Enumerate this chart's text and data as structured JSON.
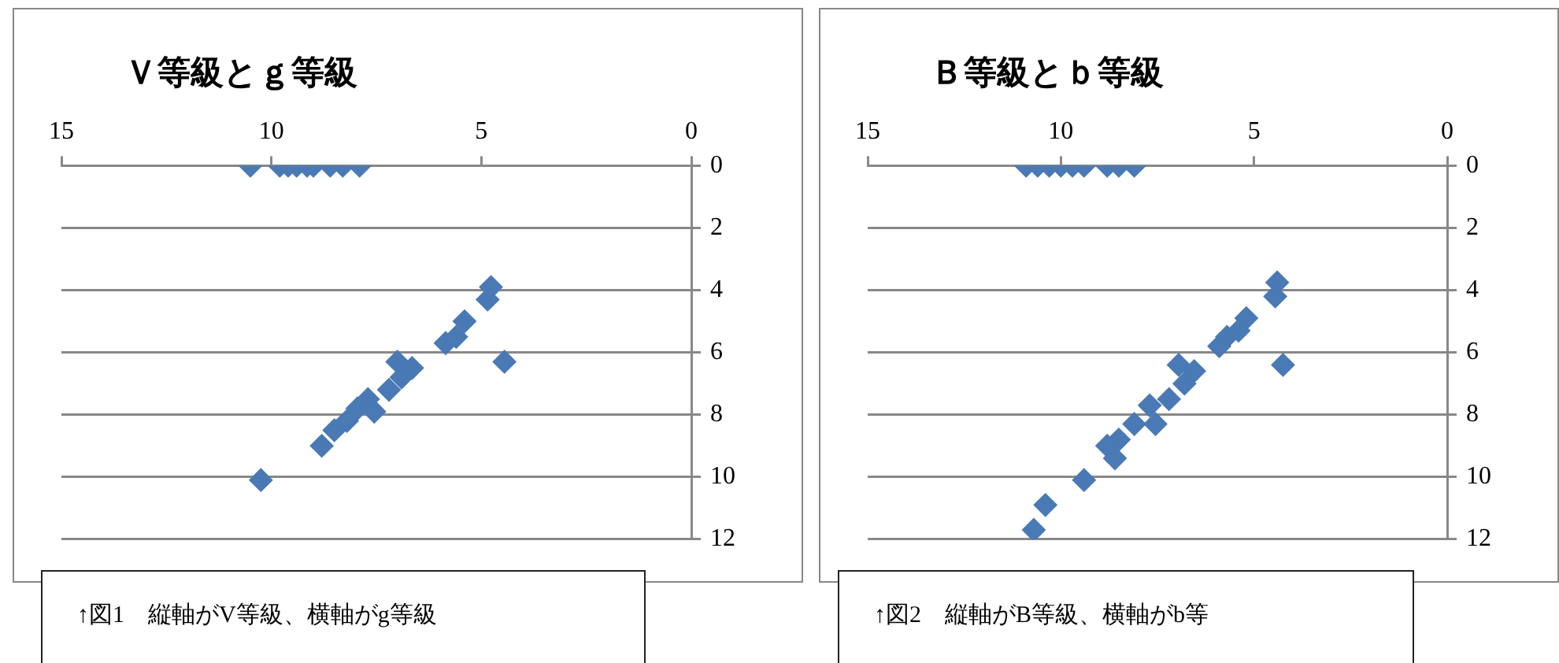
{
  "chart_data": [
    {
      "type": "scatter",
      "title": "Ｖ等級とｇ等級",
      "annotations": [
        "↑図1　縦軸がV等級、横軸がg等級"
      ],
      "xlim": [
        15,
        0
      ],
      "xticks": [
        15,
        10,
        5,
        0
      ],
      "ylim": [
        12,
        0
      ],
      "yticks": [
        0,
        2,
        4,
        6,
        8,
        10,
        12
      ],
      "grid": "y",
      "marker": "diamond",
      "legend": false,
      "series": [
        {
          "color": "#4a7ab5",
          "x": [
            10.5,
            9.8,
            9.6,
            9.4,
            9.15,
            9.0,
            8.6,
            8.3,
            7.9,
            4.77,
            4.85,
            5.4,
            5.6,
            5.85,
            4.45,
            7.0,
            6.65,
            6.9,
            7.2,
            7.7,
            7.55,
            7.95,
            8.2,
            8.5,
            8.8,
            10.25
          ],
          "values": [
            0,
            0,
            0,
            0,
            0,
            0,
            0,
            0,
            0,
            3.9,
            4.3,
            5.0,
            5.5,
            5.7,
            6.3,
            6.3,
            6.5,
            6.8,
            7.2,
            7.5,
            7.9,
            7.8,
            8.2,
            8.5,
            9.0,
            10.1
          ]
        }
      ]
    },
    {
      "type": "scatter",
      "title": "Ｂ等級とｂ等級",
      "annotations": [
        "↑図2　縦軸がB等級、横軸がb等"
      ],
      "xlim": [
        15,
        0
      ],
      "xticks": [
        15,
        10,
        5,
        0
      ],
      "ylim": [
        12,
        0
      ],
      "yticks": [
        0,
        2,
        4,
        6,
        8,
        10,
        12
      ],
      "grid": "y",
      "marker": "diamond",
      "legend": false,
      "series": [
        {
          "color": "#4a7ab5",
          "x": [
            10.9,
            10.6,
            10.3,
            10.0,
            9.7,
            9.4,
            8.8,
            8.5,
            8.1,
            4.4,
            4.45,
            5.2,
            5.4,
            5.7,
            5.9,
            4.25,
            6.95,
            6.55,
            6.8,
            7.2,
            7.7,
            7.55,
            8.1,
            8.5,
            8.8,
            8.6,
            9.4,
            10.4,
            10.7
          ],
          "values": [
            0,
            0,
            0,
            0,
            0,
            0,
            0,
            0,
            0,
            3.75,
            4.2,
            4.9,
            5.3,
            5.5,
            5.8,
            6.4,
            6.4,
            6.6,
            7.0,
            7.5,
            7.7,
            8.3,
            8.3,
            8.8,
            9.0,
            9.4,
            10.1,
            10.9,
            11.7
          ]
        }
      ]
    }
  ]
}
